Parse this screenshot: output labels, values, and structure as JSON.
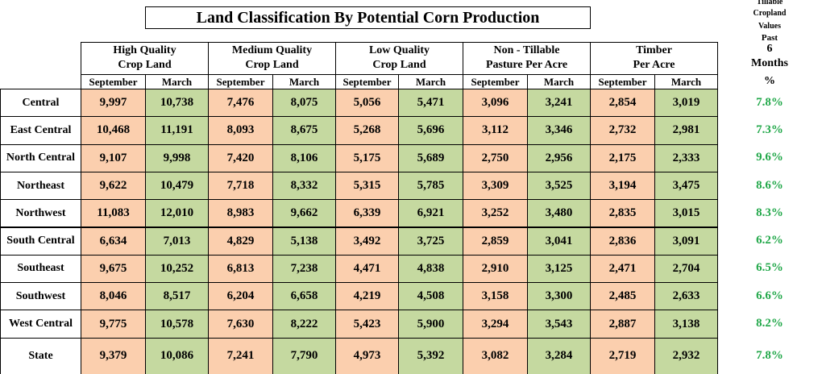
{
  "title": "Land Classification By Potential Corn Production",
  "change_header": {
    "lines": [
      "Tillable",
      "Cropland",
      "Values",
      "Past",
      "6",
      "Months"
    ],
    "unit": "%"
  },
  "column_groups": [
    {
      "lines": [
        "High Quality",
        "Crop Land"
      ],
      "columns": [
        "September",
        "March"
      ]
    },
    {
      "lines": [
        "Medium Quality",
        "Crop Land"
      ],
      "columns": [
        "September",
        "March"
      ]
    },
    {
      "lines": [
        "Low Quality",
        "Crop Land"
      ],
      "columns": [
        "September",
        "March"
      ]
    },
    {
      "lines": [
        "Non - Tillable",
        "Pasture Per Acre"
      ],
      "columns": [
        "September",
        "March"
      ]
    },
    {
      "lines": [
        "Timber",
        "Per Acre"
      ],
      "columns": [
        "September",
        "March"
      ]
    }
  ],
  "rows": [
    {
      "region": "Central",
      "values": [
        "9,997",
        "10,738",
        "7,476",
        "8,075",
        "5,056",
        "5,471",
        "3,096",
        "3,241",
        "2,854",
        "3,019"
      ],
      "change": "7.8%"
    },
    {
      "region": "East Central",
      "values": [
        "10,468",
        "11,191",
        "8,093",
        "8,675",
        "5,268",
        "5,696",
        "3,112",
        "3,346",
        "2,732",
        "2,981"
      ],
      "change": "7.3%"
    },
    {
      "region": "North Central",
      "values": [
        "9,107",
        "9,998",
        "7,420",
        "8,106",
        "5,175",
        "5,689",
        "2,750",
        "2,956",
        "2,175",
        "2,333"
      ],
      "change": "9.6%"
    },
    {
      "region": "Northeast",
      "values": [
        "9,622",
        "10,479",
        "7,718",
        "8,332",
        "5,315",
        "5,785",
        "3,309",
        "3,525",
        "3,194",
        "3,475"
      ],
      "change": "8.6%"
    },
    {
      "region": "Northwest",
      "values": [
        "11,083",
        "12,010",
        "8,983",
        "9,662",
        "6,339",
        "6,921",
        "3,252",
        "3,480",
        "2,835",
        "3,015"
      ],
      "change": "8.3%"
    },
    {
      "region": "South Central",
      "values": [
        "6,634",
        "7,013",
        "4,829",
        "5,138",
        "3,492",
        "3,725",
        "2,859",
        "3,041",
        "2,836",
        "3,091"
      ],
      "change": "6.2%"
    },
    {
      "region": "Southeast",
      "values": [
        "9,675",
        "10,252",
        "6,813",
        "7,238",
        "4,471",
        "4,838",
        "2,910",
        "3,125",
        "2,471",
        "2,704"
      ],
      "change": "6.5%"
    },
    {
      "region": "Southwest",
      "values": [
        "8,046",
        "8,517",
        "6,204",
        "6,658",
        "4,219",
        "4,508",
        "3,158",
        "3,300",
        "2,485",
        "2,633"
      ],
      "change": "6.6%"
    },
    {
      "region": "West Central",
      "values": [
        "9,775",
        "10,578",
        "7,630",
        "8,222",
        "5,423",
        "5,900",
        "3,294",
        "3,543",
        "2,887",
        "3,138"
      ],
      "change": "8.2%"
    },
    {
      "region": "State",
      "values": [
        "9,379",
        "10,086",
        "7,241",
        "7,790",
        "4,973",
        "5,392",
        "3,082",
        "3,284",
        "2,719",
        "2,932"
      ],
      "change": "7.8%"
    }
  ]
}
